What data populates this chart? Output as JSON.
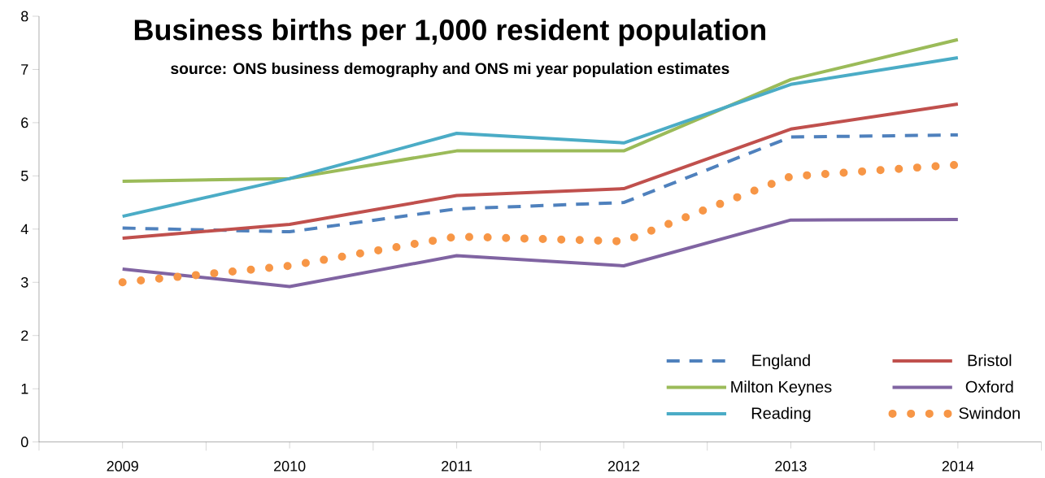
{
  "chart_data": {
    "type": "line",
    "title": "Business births per 1,000 resident population",
    "subtitle": "source: ONS business demography and ONS mi year population estimates",
    "categories": [
      "2009",
      "2010",
      "2011",
      "2012",
      "2013",
      "2014"
    ],
    "series": [
      {
        "name": "England",
        "color": "#4f81bd",
        "line_style": "dashed",
        "values": [
          4.02,
          3.95,
          4.38,
          4.5,
          5.73,
          5.77
        ]
      },
      {
        "name": "Bristol",
        "color": "#c0504d",
        "line_style": "solid",
        "values": [
          3.83,
          4.09,
          4.63,
          4.76,
          5.88,
          6.35
        ]
      },
      {
        "name": "Milton Keynes",
        "color": "#9bbb59",
        "line_style": "solid",
        "values": [
          4.9,
          4.95,
          5.47,
          5.47,
          6.81,
          7.56
        ]
      },
      {
        "name": "Oxford",
        "color": "#8064a2",
        "line_style": "solid",
        "values": [
          3.25,
          2.92,
          3.5,
          3.31,
          4.17,
          4.18
        ]
      },
      {
        "name": "Reading",
        "color": "#4bacc6",
        "line_style": "solid",
        "values": [
          4.24,
          4.95,
          5.8,
          5.62,
          6.72,
          7.22
        ]
      },
      {
        "name": "Swindon",
        "color": "#f79646",
        "line_style": "dotted",
        "values": [
          3.0,
          3.31,
          3.86,
          3.77,
          4.99,
          5.21
        ]
      }
    ],
    "ylim": [
      0,
      8
    ],
    "yticks": [
      0,
      1,
      2,
      3,
      4,
      5,
      6,
      7,
      8
    ],
    "grid": false,
    "legend": "bottom right",
    "marker": "none"
  }
}
